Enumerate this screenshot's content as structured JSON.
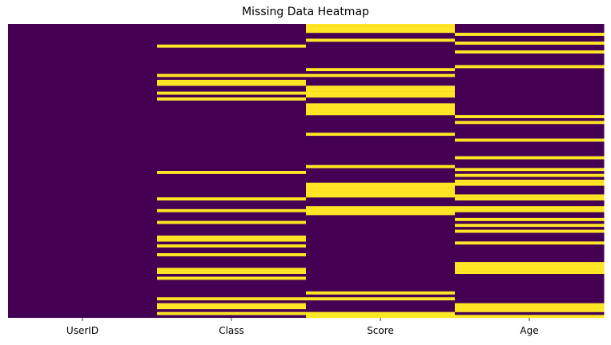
{
  "chart_data": {
    "type": "heatmap",
    "title": "Missing Data Heatmap",
    "xlabel": "",
    "ylabel": "",
    "columns": [
      "UserID",
      "Class",
      "Score",
      "Age"
    ],
    "n_rows": 100,
    "colors": {
      "present": "#440154",
      "missing": "#fde725"
    },
    "colorbar": false,
    "missing_rows": {
      "UserID": [],
      "Class": [
        7,
        17,
        19,
        20,
        23,
        25,
        50,
        59,
        63,
        67,
        72,
        73,
        75,
        78,
        83,
        84,
        86,
        93,
        95,
        96,
        98
      ],
      "Score": [
        0,
        1,
        2,
        5,
        15,
        17,
        21,
        22,
        23,
        24,
        27,
        28,
        29,
        30,
        37,
        48,
        54,
        55,
        56,
        57,
        58,
        62,
        63,
        64,
        91,
        93,
        98,
        99
      ],
      "Age": [
        3,
        6,
        9,
        14,
        31,
        33,
        39,
        45,
        49,
        51,
        53,
        54,
        58,
        59,
        62,
        63,
        66,
        68,
        70,
        74,
        81,
        82,
        83,
        84,
        95,
        96,
        97,
        99
      ]
    }
  }
}
